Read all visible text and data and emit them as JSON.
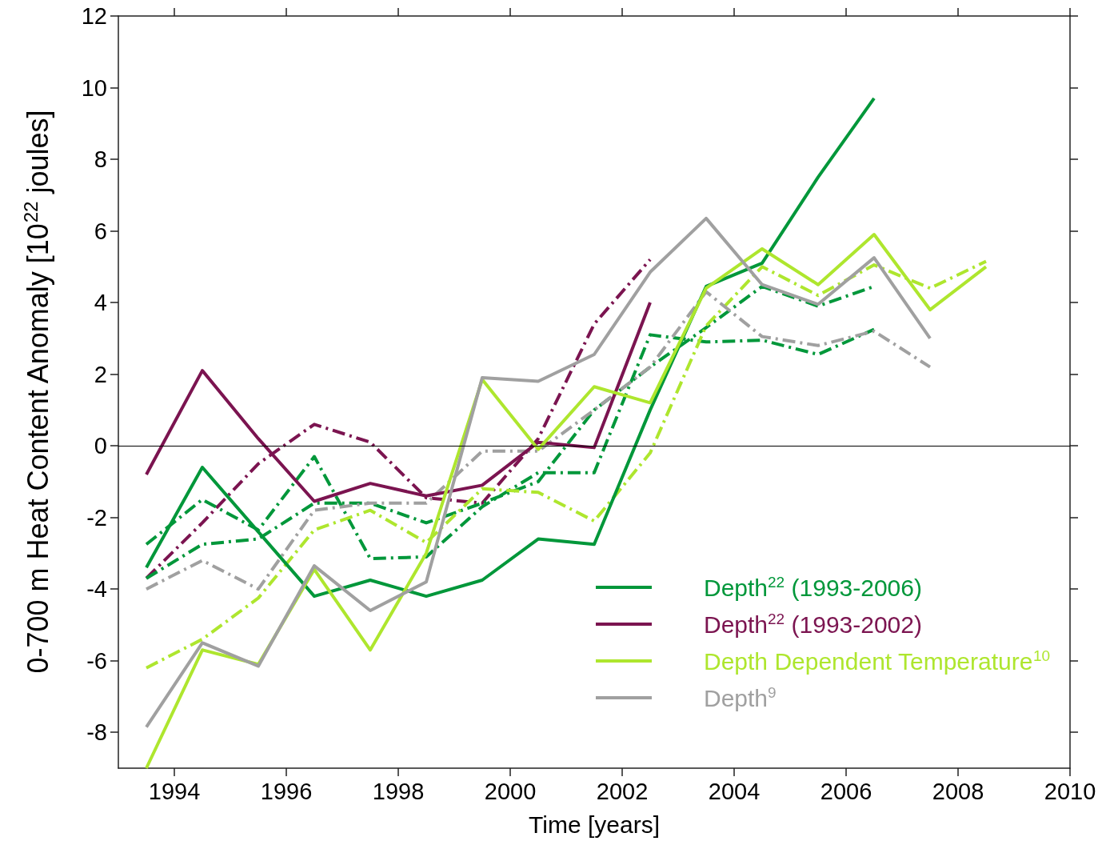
{
  "chart_data": {
    "type": "line",
    "xlabel": "Time [years]",
    "ylabel": "0-700 m Heat Content Anomaly [10$^{22}$ joules]",
    "x": [
      1993.5,
      1994.5,
      1995.5,
      1996.5,
      1997.5,
      1998.5,
      1999.5,
      2000.5,
      2001.5,
      2002.5,
      2003.5,
      2004.5,
      2005.5,
      2006.5,
      2007.5,
      2008.5
    ],
    "series": [
      {
        "name": "Depth$^{22}$ (1993-2006)",
        "color": "#00973a",
        "line_style": "solid",
        "values": [
          -3.4,
          -0.6,
          -2.4,
          -4.2,
          -3.75,
          -4.2,
          -3.75,
          -2.6,
          -2.75,
          1.0,
          4.45,
          5.1,
          7.5,
          9.7,
          null,
          null
        ]
      },
      {
        "name": "Depth$^{22}$ (1993-2002)",
        "color": "#7b1450",
        "line_style": "solid",
        "values": [
          -0.8,
          2.1,
          0.2,
          -1.55,
          -1.05,
          -1.4,
          -1.1,
          0.1,
          -0.05,
          4.0,
          null,
          null,
          null,
          null,
          null,
          null
        ]
      },
      {
        "name": "Depth Dependent Temperature$^{10}$",
        "color": "#aee62e",
        "line_style": "solid",
        "values": [
          -9,
          -5.7,
          -6.1,
          -3.45,
          -5.7,
          -3.0,
          1.85,
          -0.1,
          1.65,
          1.2,
          4.4,
          5.5,
          4.5,
          5.9,
          3.8,
          5.0
        ]
      },
      {
        "name": "Depth$^{9}$",
        "color": "#a0a0a0",
        "line_style": "solid",
        "values": [
          -7.85,
          -5.5,
          -6.15,
          -3.35,
          -4.6,
          -3.8,
          1.9,
          1.8,
          2.55,
          4.85,
          6.35,
          4.5,
          3.95,
          5.25,
          3.0,
          null
        ]
      },
      {
        "color": "#7b1450",
        "line_style": "dashed",
        "values": [
          -3.7,
          -2.15,
          -0.5,
          0.6,
          0.1,
          -1.45,
          -1.6,
          0.2,
          3.4,
          5.2,
          null,
          null,
          null,
          null,
          null,
          null
        ]
      },
      {
        "color": "#00973a",
        "line_style": "dashed",
        "values": [
          -2.75,
          -1.5,
          -2.35,
          -0.3,
          -3.15,
          -3.1,
          -1.7,
          -0.75,
          -0.75,
          3.1,
          2.9,
          2.95,
          2.55,
          3.25,
          null,
          null
        ]
      },
      {
        "color": "#00973a",
        "line_style": "dashed",
        "values": [
          -3.7,
          -2.75,
          -2.6,
          -1.6,
          -1.6,
          -2.15,
          -1.6,
          -1.0,
          1.0,
          2.2,
          3.3,
          4.45,
          3.9,
          4.45,
          null,
          null
        ]
      },
      {
        "color": "#aee62e",
        "line_style": "dashed",
        "values": [
          -6.2,
          -5.4,
          -4.25,
          -2.35,
          -1.8,
          -2.7,
          -1.2,
          -1.3,
          -2.1,
          -0.2,
          3.35,
          5.0,
          4.2,
          5.05,
          4.4,
          5.15
        ]
      },
      {
        "color": "#a0a0a0",
        "line_style": "dashed",
        "values": [
          -4.0,
          -3.2,
          -4.0,
          -1.8,
          -1.6,
          -1.6,
          -0.15,
          -0.15,
          1.0,
          2.2,
          4.3,
          3.05,
          2.8,
          3.2,
          2.2,
          null
        ]
      }
    ],
    "xlim": [
      1993,
      2010
    ],
    "xticks": [
      1994,
      1996,
      1998,
      2000,
      2002,
      2004,
      2006,
      2008,
      2010
    ],
    "ylim": [
      -9,
      12
    ],
    "yticks": [
      -8,
      -6,
      -4,
      -2,
      0,
      2,
      4,
      6,
      8,
      10,
      12
    ],
    "ref_lines": [
      {
        "axis": "y",
        "value": 0,
        "color": "#000000"
      }
    ],
    "grid": false,
    "legend": "bottom right",
    "marker": "none"
  }
}
